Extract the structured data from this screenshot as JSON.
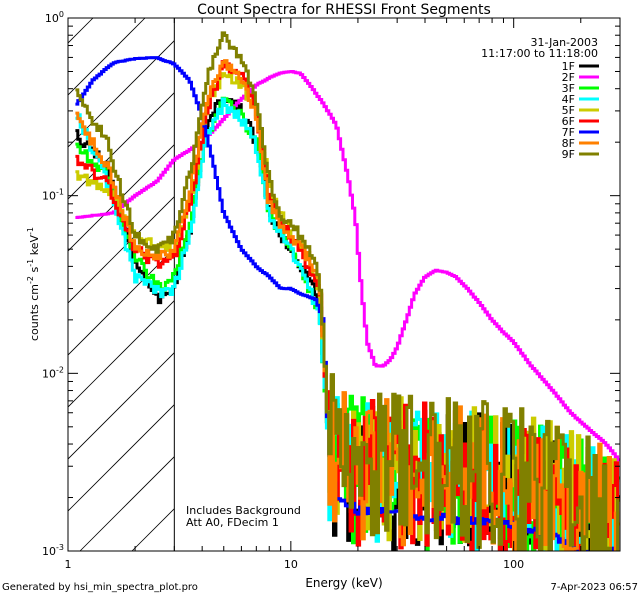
{
  "chart_data": {
    "type": "line",
    "title": "Count Spectra for RHESSI Front Segments",
    "date": "31-Jan-2003",
    "time_range": "11:17:00 to 11:18:00",
    "xlabel": "Energy (keV)",
    "ylabel": {
      "main": "counts cm",
      "exp1": "-2",
      "mid": " s",
      "exp2": "-1",
      "tail": " keV",
      "exp3": "-1"
    },
    "xscale": "log",
    "yscale": "log",
    "xlim": [
      1,
      300
    ],
    "ylim": [
      0.001,
      1
    ],
    "x_ticks": [
      {
        "value": 1,
        "label": "1"
      },
      {
        "value": 10,
        "label": "10"
      },
      {
        "value": 100,
        "label": "100"
      }
    ],
    "y_ticks": [
      {
        "value": 1,
        "label": "10",
        "exp": "0"
      },
      {
        "value": 0.1,
        "label": "10",
        "exp": "-1"
      },
      {
        "value": 0.01,
        "label": "10",
        "exp": "-2"
      },
      {
        "value": 0.001,
        "label": "10",
        "exp": "-3"
      }
    ],
    "hatched_region": [
      1,
      3
    ],
    "annotations": [
      "Includes Background",
      "Att A0, FDecim 1"
    ],
    "series": [
      {
        "name": "1F",
        "color": "#000000",
        "seed": 11,
        "noise": 1.0,
        "hf": 1.0,
        "points": [
          [
            1.08,
            0.22
          ],
          [
            1.5,
            0.15
          ],
          [
            2.0,
            0.04
          ],
          [
            2.6,
            0.025
          ],
          [
            3.0,
            0.03
          ],
          [
            3.6,
            0.07
          ],
          [
            4.2,
            0.25
          ],
          [
            5.0,
            0.37
          ],
          [
            6.0,
            0.3
          ],
          [
            7.0,
            0.2
          ],
          [
            8.0,
            0.08
          ],
          [
            9.0,
            0.06
          ],
          [
            10,
            0.05
          ],
          [
            12,
            0.035
          ],
          [
            13.5,
            0.025
          ],
          [
            14.8,
            0.004
          ],
          [
            16,
            0.003
          ],
          [
            20,
            0.0027
          ],
          [
            30,
            0.0026
          ],
          [
            60,
            0.0024
          ],
          [
            100,
            0.0022
          ],
          [
            150,
            0.0019
          ],
          [
            200,
            0.0016
          ],
          [
            290,
            0.0013
          ]
        ]
      },
      {
        "name": "2F",
        "color": "#ff00ff",
        "seed": 23,
        "noise": 0.05,
        "hf": 0.0,
        "points": [
          [
            1.08,
            0.075
          ],
          [
            1.6,
            0.08
          ],
          [
            2.0,
            0.1
          ],
          [
            2.5,
            0.12
          ],
          [
            3.0,
            0.16
          ],
          [
            3.5,
            0.18
          ],
          [
            4.0,
            0.2
          ],
          [
            5.0,
            0.27
          ],
          [
            6.0,
            0.35
          ],
          [
            7.0,
            0.42
          ],
          [
            8.0,
            0.46
          ],
          [
            9.0,
            0.49
          ],
          [
            10,
            0.5
          ],
          [
            11,
            0.49
          ],
          [
            12,
            0.43
          ],
          [
            14,
            0.33
          ],
          [
            16,
            0.25
          ],
          [
            18,
            0.13
          ],
          [
            19.5,
            0.075
          ],
          [
            20.5,
            0.035
          ],
          [
            22,
            0.015
          ],
          [
            24,
            0.011
          ],
          [
            26,
            0.011
          ],
          [
            28,
            0.012
          ],
          [
            30,
            0.014
          ],
          [
            33,
            0.02
          ],
          [
            36,
            0.028
          ],
          [
            40,
            0.035
          ],
          [
            45,
            0.038
          ],
          [
            50,
            0.037
          ],
          [
            55,
            0.035
          ],
          [
            62,
            0.03
          ],
          [
            70,
            0.025
          ],
          [
            80,
            0.02
          ],
          [
            90,
            0.017
          ],
          [
            100,
            0.015
          ],
          [
            120,
            0.011
          ],
          [
            150,
            0.008
          ],
          [
            180,
            0.006
          ],
          [
            220,
            0.0048
          ],
          [
            260,
            0.004
          ],
          [
            300,
            0.0032
          ]
        ]
      },
      {
        "name": "3F",
        "color": "#00ff00",
        "seed": 37,
        "noise": 1.0,
        "hf": 1.0,
        "points": [
          [
            1.08,
            0.19
          ],
          [
            1.5,
            0.13
          ],
          [
            2.0,
            0.045
          ],
          [
            2.6,
            0.03
          ],
          [
            3.0,
            0.035
          ],
          [
            3.6,
            0.08
          ],
          [
            4.2,
            0.22
          ],
          [
            5.0,
            0.34
          ],
          [
            6.0,
            0.28
          ],
          [
            7.0,
            0.2
          ],
          [
            8.0,
            0.08
          ],
          [
            9.0,
            0.06
          ],
          [
            10,
            0.05
          ],
          [
            12,
            0.03
          ],
          [
            13.5,
            0.022
          ],
          [
            14.8,
            0.004
          ],
          [
            16,
            0.003
          ],
          [
            20,
            0.0029
          ],
          [
            30,
            0.0027
          ],
          [
            60,
            0.0025
          ],
          [
            100,
            0.0023
          ],
          [
            150,
            0.002
          ],
          [
            200,
            0.0017
          ],
          [
            290,
            0.0014
          ]
        ]
      },
      {
        "name": "4F",
        "color": "#00ffff",
        "seed": 41,
        "noise": 1.0,
        "hf": 1.0,
        "points": [
          [
            1.08,
            0.3
          ],
          [
            1.5,
            0.12
          ],
          [
            2.0,
            0.035
          ],
          [
            2.6,
            0.028
          ],
          [
            3.0,
            0.03
          ],
          [
            3.6,
            0.07
          ],
          [
            4.2,
            0.22
          ],
          [
            5.0,
            0.33
          ],
          [
            6.0,
            0.27
          ],
          [
            7.0,
            0.19
          ],
          [
            8.0,
            0.08
          ],
          [
            9.0,
            0.06
          ],
          [
            10,
            0.05
          ],
          [
            12,
            0.03
          ],
          [
            13.5,
            0.022
          ],
          [
            14.8,
            0.004
          ],
          [
            16,
            0.003
          ],
          [
            20,
            0.0028
          ],
          [
            30,
            0.0027
          ],
          [
            60,
            0.0025
          ],
          [
            100,
            0.0022
          ],
          [
            150,
            0.0019
          ],
          [
            200,
            0.0016
          ],
          [
            290,
            0.0013
          ]
        ]
      },
      {
        "name": "5F",
        "color": "#cccc00",
        "seed": 53,
        "noise": 1.0,
        "hf": 1.0,
        "points": [
          [
            1.08,
            0.13
          ],
          [
            1.5,
            0.11
          ],
          [
            2.0,
            0.06
          ],
          [
            2.6,
            0.05
          ],
          [
            3.0,
            0.05
          ],
          [
            3.6,
            0.1
          ],
          [
            4.2,
            0.3
          ],
          [
            5.0,
            0.5
          ],
          [
            6.0,
            0.42
          ],
          [
            7.0,
            0.3
          ],
          [
            8.0,
            0.12
          ],
          [
            9.0,
            0.08
          ],
          [
            10,
            0.06
          ],
          [
            12,
            0.045
          ],
          [
            13.5,
            0.03
          ],
          [
            14.8,
            0.005
          ],
          [
            16,
            0.0035
          ],
          [
            20,
            0.003
          ],
          [
            30,
            0.003
          ],
          [
            60,
            0.0028
          ],
          [
            100,
            0.0025
          ],
          [
            150,
            0.0022
          ],
          [
            200,
            0.0018
          ],
          [
            290,
            0.0015
          ]
        ]
      },
      {
        "name": "6F",
        "color": "#ff0000",
        "seed": 67,
        "noise": 1.0,
        "hf": 1.0,
        "points": [
          [
            1.08,
            0.16
          ],
          [
            1.5,
            0.12
          ],
          [
            2.0,
            0.05
          ],
          [
            2.6,
            0.04
          ],
          [
            3.0,
            0.045
          ],
          [
            3.6,
            0.1
          ],
          [
            4.2,
            0.3
          ],
          [
            5.0,
            0.55
          ],
          [
            6.0,
            0.5
          ],
          [
            7.0,
            0.3
          ],
          [
            8.0,
            0.1
          ],
          [
            9.0,
            0.07
          ],
          [
            10,
            0.06
          ],
          [
            12,
            0.04
          ],
          [
            13.5,
            0.03
          ],
          [
            14.8,
            0.005
          ],
          [
            16,
            0.003
          ],
          [
            20,
            0.0028
          ],
          [
            30,
            0.0027
          ],
          [
            60,
            0.0025
          ],
          [
            100,
            0.0023
          ],
          [
            150,
            0.002
          ],
          [
            200,
            0.0017
          ],
          [
            290,
            0.0014
          ]
        ]
      },
      {
        "name": "7F",
        "color": "#0000ff",
        "seed": 79,
        "noise": 0.06,
        "hf": 1.0,
        "points": [
          [
            1.08,
            0.32
          ],
          [
            1.3,
            0.45
          ],
          [
            1.6,
            0.56
          ],
          [
            2.0,
            0.59
          ],
          [
            2.5,
            0.6
          ],
          [
            3.0,
            0.55
          ],
          [
            3.5,
            0.45
          ],
          [
            4.0,
            0.28
          ],
          [
            4.5,
            0.15
          ],
          [
            5.0,
            0.08
          ],
          [
            6.0,
            0.05
          ],
          [
            7.0,
            0.04
          ],
          [
            8.0,
            0.035
          ],
          [
            9.0,
            0.03
          ],
          [
            10,
            0.03
          ],
          [
            11,
            0.028
          ],
          [
            12,
            0.027
          ],
          [
            13,
            0.026
          ],
          [
            14,
            0.02
          ],
          [
            14.8,
            0.004
          ],
          [
            16,
            0.002
          ],
          [
            20,
            0.0017
          ],
          [
            30,
            0.0016
          ],
          [
            60,
            0.0015
          ],
          [
            100,
            0.0014
          ],
          [
            150,
            0.0012
          ],
          [
            200,
            0.001
          ],
          [
            290,
            0.001
          ]
        ]
      },
      {
        "name": "8F",
        "color": "#ff8000",
        "seed": 83,
        "noise": 1.0,
        "hf": 1.0,
        "points": [
          [
            1.08,
            0.28
          ],
          [
            1.5,
            0.15
          ],
          [
            2.0,
            0.05
          ],
          [
            2.6,
            0.045
          ],
          [
            3.0,
            0.05
          ],
          [
            3.6,
            0.12
          ],
          [
            4.2,
            0.35
          ],
          [
            5.0,
            0.58
          ],
          [
            6.0,
            0.45
          ],
          [
            7.0,
            0.28
          ],
          [
            8.0,
            0.09
          ],
          [
            9.0,
            0.07
          ],
          [
            10,
            0.06
          ],
          [
            12,
            0.045
          ],
          [
            13.5,
            0.032
          ],
          [
            14.8,
            0.005
          ],
          [
            16,
            0.0033
          ],
          [
            20,
            0.0029
          ],
          [
            30,
            0.0028
          ],
          [
            60,
            0.0026
          ],
          [
            100,
            0.0023
          ],
          [
            150,
            0.002
          ],
          [
            200,
            0.0017
          ],
          [
            290,
            0.0014
          ]
        ]
      },
      {
        "name": "9F",
        "color": "#808000",
        "seed": 97,
        "noise": 1.0,
        "hf": 1.0,
        "points": [
          [
            1.08,
            0.38
          ],
          [
            1.5,
            0.2
          ],
          [
            2.0,
            0.06
          ],
          [
            2.6,
            0.05
          ],
          [
            3.0,
            0.06
          ],
          [
            3.6,
            0.15
          ],
          [
            4.2,
            0.45
          ],
          [
            5.0,
            0.8
          ],
          [
            6.0,
            0.6
          ],
          [
            7.0,
            0.35
          ],
          [
            8.0,
            0.12
          ],
          [
            9.0,
            0.08
          ],
          [
            10,
            0.07
          ],
          [
            12,
            0.05
          ],
          [
            13.5,
            0.035
          ],
          [
            14.8,
            0.005
          ],
          [
            16,
            0.0035
          ],
          [
            20,
            0.003
          ],
          [
            30,
            0.003
          ],
          [
            60,
            0.0028
          ],
          [
            100,
            0.0025
          ],
          [
            150,
            0.0022
          ],
          [
            200,
            0.0018
          ],
          [
            290,
            0.0015
          ]
        ]
      }
    ]
  },
  "footer": {
    "generated_by": "Generated by hsi_min_spectra_plot.pro",
    "timestamp": "7-Apr-2023 06:57"
  }
}
